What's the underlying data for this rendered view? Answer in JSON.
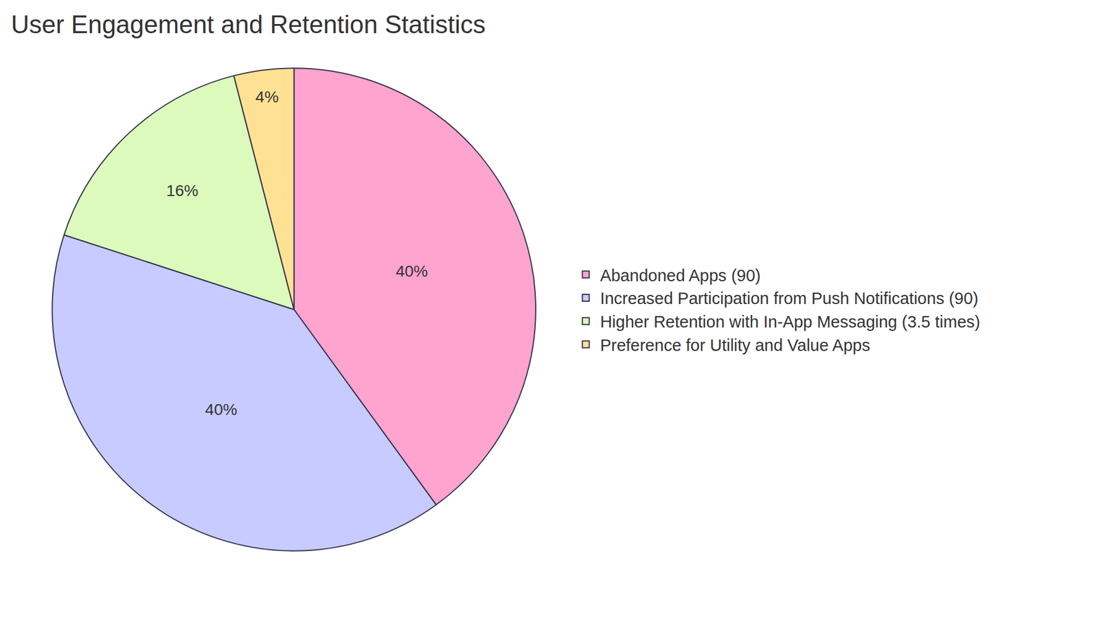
{
  "chart_data": {
    "type": "pie",
    "title": "User Engagement and Retention Statistics",
    "categories": [
      "Abandoned Apps (90)",
      "Increased Participation from Push Notifications (90)",
      "Higher Retention with In-App Messaging (3.5 times)",
      "Preference for Utility and Value Apps"
    ],
    "values": [
      40,
      40,
      16,
      4
    ],
    "value_labels": [
      "40%",
      "40%",
      "16%",
      "4%"
    ],
    "colors": [
      "#ffa3cf",
      "#c7cbff",
      "#dcfabc",
      "#ffe194"
    ],
    "data_labels": true,
    "legend": "right"
  }
}
